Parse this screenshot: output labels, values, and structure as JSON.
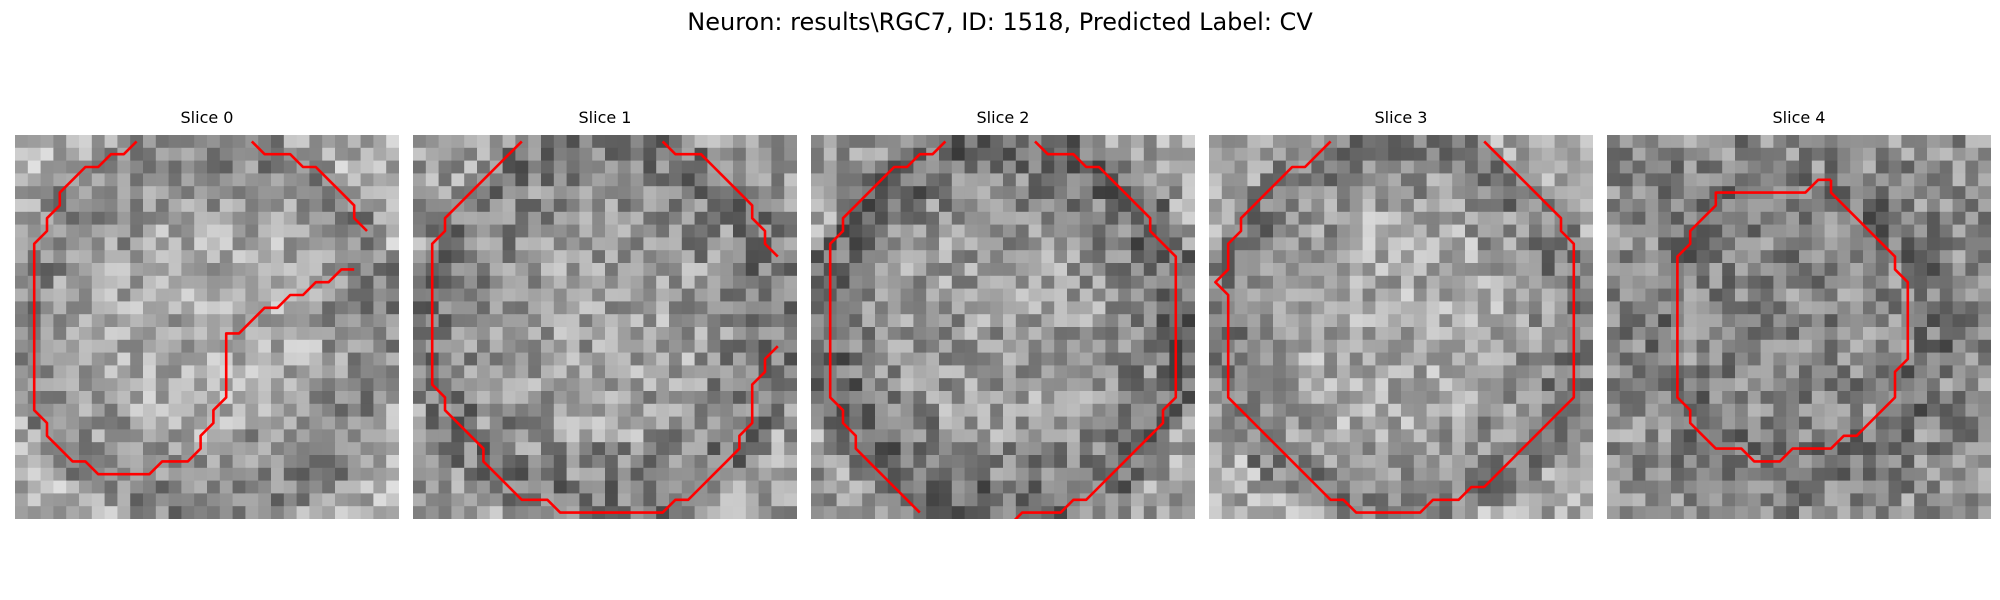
{
  "figure": {
    "title": "Neuron: results\\RGC7, ID: 1518, Predicted Label: CV"
  },
  "panels": [
    {
      "title": "Slice 0",
      "seed": 11,
      "base": 150,
      "contrast": 0.55,
      "ring": 0.25,
      "outside": 0.55,
      "contour": [
        [
          26,
          10
        ],
        [
          25,
          10
        ],
        [
          24,
          11
        ],
        [
          23,
          11
        ],
        [
          22,
          12
        ],
        [
          21,
          12
        ],
        [
          20,
          13
        ],
        [
          19,
          13
        ],
        [
          18,
          14
        ],
        [
          17,
          15
        ],
        [
          16,
          15
        ],
        [
          16,
          16
        ],
        [
          16,
          17
        ],
        [
          16,
          18
        ],
        [
          16,
          19
        ],
        [
          16,
          20
        ],
        [
          15,
          21
        ],
        [
          15,
          22
        ],
        [
          14,
          23
        ],
        [
          14,
          24
        ],
        [
          13,
          25
        ],
        [
          12,
          25
        ],
        [
          11,
          25
        ],
        [
          10,
          26
        ],
        [
          9,
          26
        ],
        [
          8,
          26
        ],
        [
          7,
          26
        ],
        [
          6,
          26
        ],
        [
          5,
          25
        ],
        [
          4,
          25
        ],
        [
          3,
          24
        ],
        [
          2,
          23
        ],
        [
          2,
          22
        ],
        [
          1,
          21
        ],
        [
          1,
          20
        ],
        [
          1,
          19
        ],
        [
          1,
          18
        ],
        [
          1,
          17
        ],
        [
          1,
          16
        ],
        [
          1,
          15
        ],
        [
          1,
          14
        ],
        [
          1,
          13
        ],
        [
          1,
          12
        ],
        [
          1,
          11
        ],
        [
          1,
          10
        ],
        [
          1,
          9
        ],
        [
          1,
          8
        ],
        [
          2,
          7
        ],
        [
          2,
          6
        ],
        [
          3,
          5
        ],
        [
          3,
          4
        ],
        [
          4,
          3
        ],
        [
          5,
          2
        ],
        [
          6,
          2
        ],
        [
          7,
          1
        ],
        [
          8,
          1
        ],
        [
          9,
          0
        ]
      ],
      "contour2": [
        [
          18,
          0
        ],
        [
          19,
          1
        ],
        [
          20,
          1
        ],
        [
          21,
          1
        ],
        [
          22,
          2
        ],
        [
          23,
          2
        ],
        [
          24,
          3
        ],
        [
          25,
          4
        ],
        [
          26,
          5
        ],
        [
          26,
          6
        ],
        [
          27,
          7
        ]
      ]
    },
    {
      "title": "Slice 1",
      "seed": 23,
      "base": 140,
      "contrast": 0.6,
      "ring": 0.3,
      "outside": 0.4,
      "contour": [
        [
          8,
          0
        ],
        [
          7,
          1
        ],
        [
          6,
          2
        ],
        [
          5,
          3
        ],
        [
          4,
          4
        ],
        [
          3,
          5
        ],
        [
          2,
          6
        ],
        [
          2,
          7
        ],
        [
          1,
          8
        ],
        [
          1,
          9
        ],
        [
          1,
          10
        ],
        [
          1,
          11
        ],
        [
          1,
          12
        ],
        [
          1,
          13
        ],
        [
          1,
          14
        ],
        [
          1,
          15
        ],
        [
          1,
          16
        ],
        [
          1,
          17
        ],
        [
          1,
          18
        ],
        [
          1,
          19
        ],
        [
          2,
          20
        ],
        [
          2,
          21
        ],
        [
          3,
          22
        ],
        [
          4,
          23
        ],
        [
          5,
          24
        ],
        [
          5,
          25
        ],
        [
          6,
          26
        ],
        [
          7,
          27
        ],
        [
          8,
          28
        ],
        [
          9,
          28
        ],
        [
          10,
          28
        ],
        [
          11,
          29
        ],
        [
          12,
          29
        ],
        [
          13,
          29
        ],
        [
          14,
          29
        ],
        [
          15,
          29
        ],
        [
          16,
          29
        ],
        [
          17,
          29
        ],
        [
          18,
          29
        ],
        [
          19,
          29
        ],
        [
          20,
          28
        ],
        [
          21,
          28
        ],
        [
          22,
          27
        ],
        [
          23,
          26
        ],
        [
          24,
          25
        ],
        [
          25,
          24
        ],
        [
          25,
          23
        ],
        [
          26,
          22
        ],
        [
          26,
          21
        ],
        [
          26,
          20
        ],
        [
          26,
          19
        ],
        [
          27,
          18
        ],
        [
          27,
          17
        ],
        [
          28,
          16
        ]
      ],
      "contour2": [
        [
          19,
          0
        ],
        [
          20,
          1
        ],
        [
          21,
          1
        ],
        [
          22,
          1
        ],
        [
          23,
          2
        ],
        [
          24,
          3
        ],
        [
          25,
          4
        ],
        [
          26,
          5
        ],
        [
          26,
          6
        ],
        [
          27,
          7
        ],
        [
          27,
          8
        ],
        [
          28,
          9
        ]
      ]
    },
    {
      "title": "Slice 2",
      "seed": 37,
      "base": 135,
      "contrast": 0.6,
      "ring": 0.45,
      "outside": 0.5,
      "contour": [
        [
          10,
          0
        ],
        [
          9,
          1
        ],
        [
          8,
          1
        ],
        [
          7,
          2
        ],
        [
          6,
          2
        ],
        [
          5,
          3
        ],
        [
          4,
          4
        ],
        [
          3,
          5
        ],
        [
          2,
          6
        ],
        [
          2,
          7
        ],
        [
          1,
          8
        ],
        [
          1,
          9
        ],
        [
          1,
          10
        ],
        [
          1,
          11
        ],
        [
          1,
          12
        ],
        [
          1,
          13
        ],
        [
          1,
          14
        ],
        [
          1,
          15
        ],
        [
          1,
          16
        ],
        [
          1,
          17
        ],
        [
          1,
          18
        ],
        [
          1,
          19
        ],
        [
          1,
          20
        ],
        [
          2,
          21
        ],
        [
          2,
          22
        ],
        [
          3,
          23
        ],
        [
          3,
          24
        ],
        [
          4,
          25
        ],
        [
          5,
          26
        ],
        [
          6,
          27
        ],
        [
          7,
          28
        ],
        [
          8,
          29
        ]
      ],
      "contour2": [
        [
          17,
          0
        ],
        [
          18,
          1
        ],
        [
          19,
          1
        ],
        [
          20,
          1
        ],
        [
          21,
          2
        ],
        [
          22,
          2
        ],
        [
          23,
          3
        ],
        [
          24,
          4
        ],
        [
          25,
          5
        ],
        [
          26,
          6
        ],
        [
          26,
          7
        ],
        [
          27,
          8
        ],
        [
          28,
          9
        ],
        [
          28,
          10
        ],
        [
          28,
          11
        ],
        [
          28,
          12
        ],
        [
          28,
          13
        ],
        [
          28,
          14
        ],
        [
          28,
          15
        ],
        [
          28,
          16
        ],
        [
          28,
          17
        ],
        [
          28,
          18
        ],
        [
          28,
          19
        ],
        [
          28,
          20
        ],
        [
          27,
          21
        ],
        [
          27,
          22
        ],
        [
          26,
          23
        ],
        [
          25,
          24
        ],
        [
          24,
          25
        ],
        [
          23,
          26
        ],
        [
          22,
          27
        ],
        [
          21,
          28
        ],
        [
          20,
          28
        ],
        [
          19,
          29
        ],
        [
          18,
          29
        ],
        [
          17,
          29
        ],
        [
          16,
          29
        ],
        [
          15,
          30
        ]
      ]
    },
    {
      "title": "Slice 3",
      "seed": 53,
      "base": 150,
      "contrast": 0.55,
      "ring": 0.4,
      "outside": 0.45,
      "contour": [
        [
          9,
          0
        ],
        [
          8,
          1
        ],
        [
          7,
          2
        ],
        [
          6,
          2
        ],
        [
          5,
          3
        ],
        [
          4,
          4
        ],
        [
          3,
          5
        ],
        [
          2,
          6
        ],
        [
          2,
          7
        ],
        [
          1,
          8
        ],
        [
          1,
          9
        ],
        [
          1,
          10
        ],
        [
          0,
          11
        ],
        [
          1,
          12
        ],
        [
          1,
          13
        ],
        [
          1,
          14
        ],
        [
          1,
          15
        ],
        [
          1,
          16
        ],
        [
          1,
          17
        ],
        [
          1,
          18
        ],
        [
          1,
          19
        ],
        [
          1,
          20
        ],
        [
          2,
          21
        ],
        [
          3,
          22
        ],
        [
          4,
          23
        ],
        [
          5,
          24
        ],
        [
          6,
          25
        ],
        [
          7,
          26
        ],
        [
          8,
          27
        ],
        [
          9,
          28
        ],
        [
          10,
          28
        ],
        [
          11,
          29
        ],
        [
          12,
          29
        ],
        [
          13,
          29
        ],
        [
          14,
          29
        ],
        [
          15,
          29
        ],
        [
          16,
          29
        ],
        [
          17,
          28
        ],
        [
          18,
          28
        ],
        [
          19,
          28
        ],
        [
          20,
          27
        ],
        [
          21,
          27
        ],
        [
          22,
          26
        ],
        [
          23,
          25
        ],
        [
          24,
          24
        ],
        [
          25,
          23
        ],
        [
          26,
          22
        ],
        [
          27,
          21
        ],
        [
          28,
          20
        ],
        [
          28,
          19
        ],
        [
          28,
          18
        ],
        [
          28,
          17
        ],
        [
          28,
          16
        ],
        [
          28,
          15
        ],
        [
          28,
          14
        ],
        [
          28,
          13
        ],
        [
          28,
          12
        ],
        [
          28,
          11
        ],
        [
          28,
          10
        ],
        [
          28,
          9
        ],
        [
          28,
          8
        ],
        [
          27,
          7
        ],
        [
          27,
          6
        ],
        [
          26,
          5
        ],
        [
          25,
          4
        ],
        [
          24,
          3
        ],
        [
          23,
          2
        ],
        [
          22,
          1
        ],
        [
          21,
          0
        ]
      ],
      "contour2": []
    },
    {
      "title": "Slice 4",
      "seed": 71,
      "base": 115,
      "contrast": 0.6,
      "ring": -0.35,
      "outside": 0.55,
      "contour": [
        [
          17,
          3
        ],
        [
          16,
          3
        ],
        [
          15,
          4
        ],
        [
          14,
          4
        ],
        [
          13,
          4
        ],
        [
          12,
          4
        ],
        [
          11,
          4
        ],
        [
          10,
          4
        ],
        [
          9,
          4
        ],
        [
          8,
          4
        ],
        [
          8,
          5
        ],
        [
          7,
          6
        ],
        [
          6,
          7
        ],
        [
          6,
          8
        ],
        [
          5,
          9
        ],
        [
          5,
          10
        ],
        [
          5,
          11
        ],
        [
          5,
          12
        ],
        [
          5,
          13
        ],
        [
          5,
          14
        ],
        [
          5,
          15
        ],
        [
          5,
          16
        ],
        [
          5,
          17
        ],
        [
          5,
          18
        ],
        [
          5,
          19
        ],
        [
          5,
          20
        ],
        [
          6,
          21
        ],
        [
          6,
          22
        ],
        [
          7,
          23
        ],
        [
          8,
          24
        ],
        [
          9,
          24
        ],
        [
          10,
          24
        ],
        [
          11,
          25
        ],
        [
          12,
          25
        ],
        [
          13,
          25
        ],
        [
          14,
          24
        ],
        [
          15,
          24
        ],
        [
          16,
          24
        ],
        [
          17,
          24
        ],
        [
          18,
          23
        ],
        [
          19,
          23
        ],
        [
          20,
          22
        ],
        [
          21,
          21
        ],
        [
          22,
          20
        ],
        [
          22,
          19
        ],
        [
          22,
          18
        ],
        [
          23,
          17
        ],
        [
          23,
          16
        ],
        [
          23,
          15
        ],
        [
          23,
          14
        ],
        [
          23,
          13
        ],
        [
          23,
          12
        ],
        [
          23,
          11
        ],
        [
          22,
          10
        ],
        [
          22,
          9
        ],
        [
          21,
          8
        ],
        [
          20,
          7
        ],
        [
          19,
          6
        ],
        [
          18,
          5
        ],
        [
          17,
          4
        ],
        [
          17,
          3
        ]
      ],
      "contour2": []
    }
  ],
  "style": {
    "contour_color": "#ff0000"
  }
}
